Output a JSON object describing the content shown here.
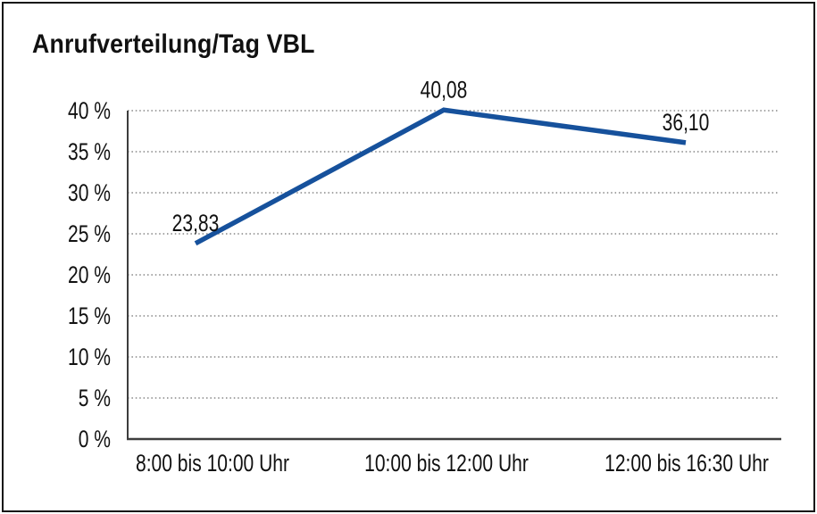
{
  "chart_data": {
    "type": "line",
    "title": "Anrufverteilung/Tag VBL",
    "categories": [
      "8:00 bis 10:00 Uhr",
      "10:00 bis 12:00 Uhr",
      "12:00 bis 16:30 Uhr"
    ],
    "series": [
      {
        "values": [
          23.83,
          40.08,
          36.1
        ]
      }
    ],
    "data_labels": [
      "23,83",
      "40,08",
      "36,10"
    ],
    "ytick_labels": [
      "0 %",
      "5 %",
      "10 %",
      "15 %",
      "20 %",
      "25 %",
      "30 %",
      "35 %",
      "40 %"
    ],
    "ylim": [
      0,
      40
    ],
    "ytick_step": 5,
    "xlabel": "",
    "ylabel": "",
    "grid": "horizontal-dotted",
    "legend_position": "none",
    "colors": {
      "line": "#16519C",
      "grid": "#858585",
      "axis": "#3D3D3D",
      "text": "#111111",
      "border": "#141414",
      "background": "#FFFFFF"
    }
  }
}
